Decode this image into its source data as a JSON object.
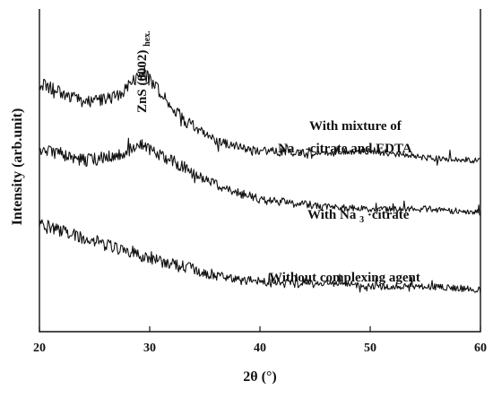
{
  "chart_data": {
    "type": "line",
    "title": "",
    "xlabel": "2θ (°)",
    "ylabel": "Intensity (arb.unit)",
    "xlim": [
      20,
      60
    ],
    "ylim": [
      0,
      100
    ],
    "x_ticks": [
      20,
      30,
      40,
      50,
      60
    ],
    "y_ticks_visible": false,
    "grid": false,
    "series": [
      {
        "name": "With mixture of Na3-citrate and EDTA",
        "x": [
          20,
          22,
          24,
          26,
          27.5,
          29,
          29.5,
          31,
          33,
          36,
          40,
          45,
          50,
          55,
          60
        ],
        "y": [
          77,
          74,
          71,
          72,
          74,
          79,
          80,
          74,
          66,
          59,
          56,
          55,
          56,
          54,
          53
        ]
      },
      {
        "name": "With Na3·citrate",
        "x": [
          20,
          22,
          24,
          26,
          28,
          29,
          31,
          34,
          37,
          40,
          45,
          50,
          55,
          60
        ],
        "y": [
          57,
          55,
          53,
          54,
          56,
          58,
          55,
          49,
          44,
          41,
          39,
          38,
          38,
          37
        ]
      },
      {
        "name": "Without complexing agent",
        "x": [
          20,
          22,
          24,
          26,
          28,
          30,
          32,
          35,
          38,
          42,
          46,
          50,
          55,
          60
        ],
        "y": [
          33,
          31,
          29,
          27,
          25,
          23,
          21,
          18,
          16,
          15,
          15,
          14,
          14,
          13
        ]
      }
    ],
    "annotations": {
      "peak_label": "ZnS (0002)hex.",
      "series_labels": [
        {
          "line1": "With mixture of",
          "line2_main": "Na",
          "line2_sub": "3",
          "line2_rest": "-citrate and EDTA"
        },
        {
          "main": "With Na",
          "sub": "3",
          "rest": "·citrate"
        },
        {
          "text": "Without complexing agent"
        }
      ]
    }
  }
}
